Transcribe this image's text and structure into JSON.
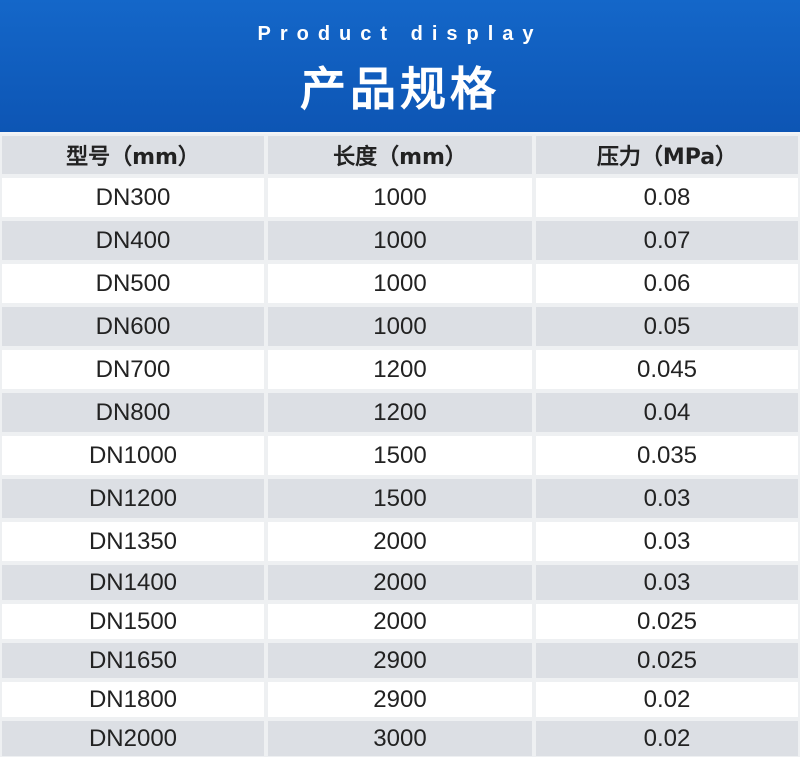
{
  "header": {
    "subtitle": "Product display",
    "title": "产品规格"
  },
  "table": {
    "columns": [
      "型号（mm）",
      "长度（mm）",
      "压力（MPa）"
    ],
    "rows": [
      [
        "DN300",
        "1000",
        "0.08"
      ],
      [
        "DN400",
        "1000",
        "0.07"
      ],
      [
        "DN500",
        "1000",
        "0.06"
      ],
      [
        "DN600",
        "1000",
        "0.05"
      ],
      [
        "DN700",
        "1200",
        "0.045"
      ],
      [
        "DN800",
        "1200",
        "0.04"
      ],
      [
        "DN1000",
        "1500",
        "0.035"
      ],
      [
        "DN1200",
        "1500",
        "0.03"
      ],
      [
        "DN1350",
        "2000",
        "0.03"
      ],
      [
        "DN1400",
        "2000",
        "0.03"
      ],
      [
        "DN1500",
        "2000",
        "0.025"
      ],
      [
        "DN1650",
        "2900",
        "0.025"
      ],
      [
        "DN1800",
        "2900",
        "0.02"
      ],
      [
        "DN2000",
        "3000",
        "0.02"
      ]
    ]
  },
  "colors": {
    "banner_blue": "#0d55b4",
    "row_grey": "#dcdfe4",
    "row_white": "#ffffff",
    "text": "#222222"
  }
}
